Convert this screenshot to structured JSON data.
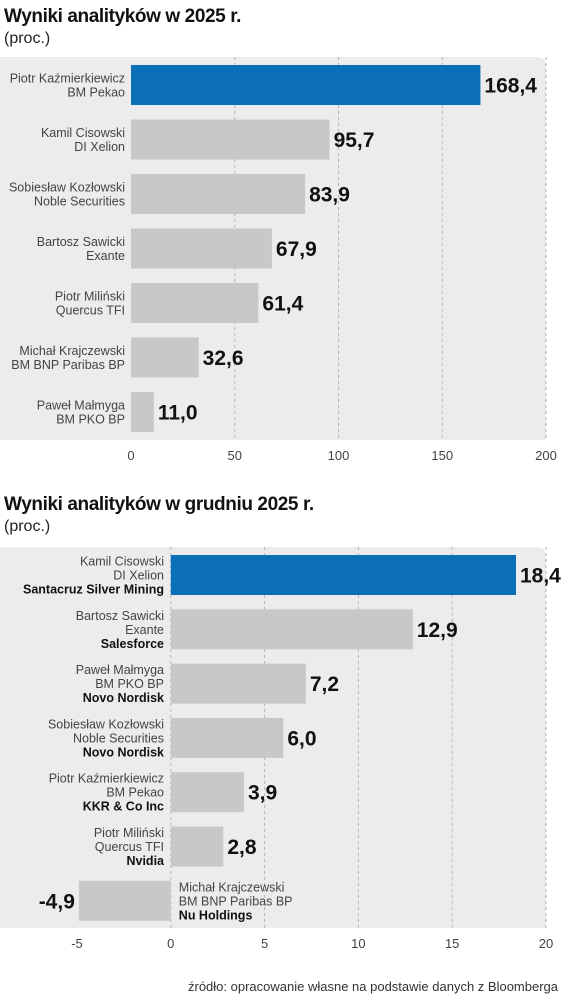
{
  "chart_data": [
    {
      "type": "bar",
      "orientation": "horizontal",
      "title": "Wyniki analityków w 2025 r.",
      "subtitle": "(proc.)",
      "categories": [
        [
          "Piotr Kaźmierkiewicz",
          "BM Pekao"
        ],
        [
          "Kamil Cisowski",
          "DI Xelion"
        ],
        [
          "Sobiesław Kozłowski",
          "Noble Securities"
        ],
        [
          "Bartosz Sawicki",
          "Exante"
        ],
        [
          "Piotr Miliński",
          "Quercus TFI"
        ],
        [
          "Michał Krajczewski",
          "BM BNP Paribas BP"
        ],
        [
          "Paweł Małmyga",
          "BM PKO BP"
        ]
      ],
      "values": [
        168.4,
        95.7,
        83.9,
        67.9,
        61.4,
        32.6,
        11.0
      ],
      "value_labels": [
        "168,4",
        "95,7",
        "83,9",
        "67,9",
        "61,4",
        "32,6",
        "11,0"
      ],
      "highlight_index": 0,
      "xlim": [
        0,
        200
      ],
      "xticks": [
        0,
        50,
        100,
        150,
        200
      ],
      "xtick_labels": [
        "0",
        "50",
        "100",
        "150",
        "200"
      ],
      "grid": true
    },
    {
      "type": "bar",
      "orientation": "horizontal",
      "title": "Wyniki analityków w grudniu 2025 r.",
      "subtitle": "(proc.)",
      "categories": [
        [
          "Kamil Cisowski",
          "DI Xelion"
        ],
        [
          "Bartosz Sawicki",
          "Exante"
        ],
        [
          "Paweł Małmyga",
          "BM PKO BP"
        ],
        [
          "Sobiesław Kozłowski",
          "Noble Securities"
        ],
        [
          "Piotr Kaźmierkiewicz",
          "BM Pekao"
        ],
        [
          "Piotr Miliński",
          "Quercus TFI"
        ],
        [
          "Michał Krajczewski",
          "BM BNP Paribas BP"
        ]
      ],
      "picks": [
        "Santacruz Silver Mining",
        "Salesforce",
        "Novo Nordisk",
        "Novo Nordisk",
        "KKR & Co Inc",
        "Nvidia",
        "Nu Holdings"
      ],
      "values": [
        18.4,
        12.9,
        7.2,
        6.0,
        3.9,
        2.8,
        -4.9
      ],
      "value_labels": [
        "18,4",
        "12,9",
        "7,2",
        "6,0",
        "3,9",
        "2,8",
        "-4,9"
      ],
      "highlight_index": 0,
      "xlim": [
        -5,
        20
      ],
      "xticks": [
        -5,
        0,
        5,
        10,
        15,
        20
      ],
      "xtick_labels": [
        "-5",
        "0",
        "5",
        "10",
        "15",
        "20"
      ],
      "grid": true
    }
  ],
  "colors": {
    "highlight": "#0a6fb7",
    "bar": "#c8c8c8",
    "panel": "#ececec",
    "grid": "#b5b5b5"
  },
  "source": "źródło: opracowanie własne na podstawie danych z Bloomberga"
}
